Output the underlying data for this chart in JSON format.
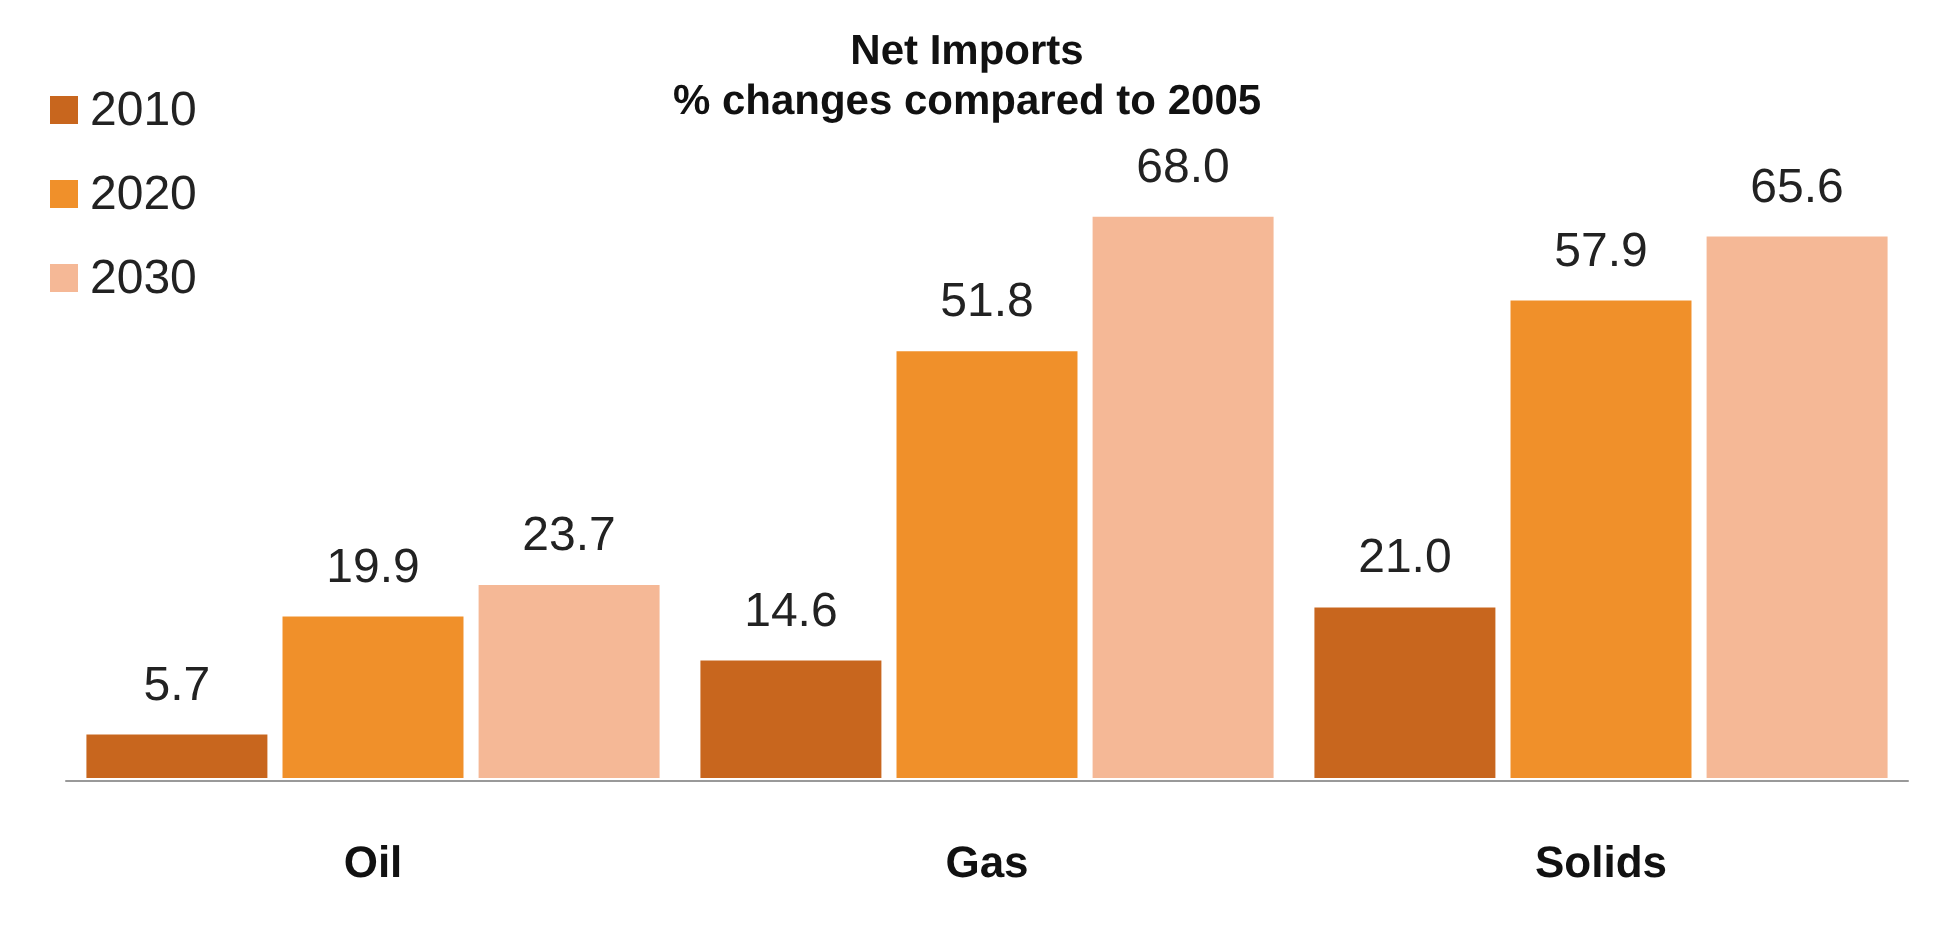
{
  "chart_data": {
    "type": "bar",
    "title": "Net Imports",
    "subtitle": "% changes compared to 2005",
    "categories": [
      "Oil",
      "Gas",
      "Solids"
    ],
    "series": [
      {
        "name": "2010",
        "color": "#c8661e",
        "values": [
          5.7,
          14.6,
          21.0
        ],
        "value_labels": [
          "5.7",
          "14.6",
          "21.0"
        ]
      },
      {
        "name": "2020",
        "color": "#f0902a",
        "values": [
          19.9,
          51.8,
          57.9
        ],
        "value_labels": [
          "19.9",
          "51.8",
          "57.9"
        ]
      },
      {
        "name": "2030",
        "color": "#f5b896",
        "values": [
          23.7,
          68.0,
          65.6
        ],
        "value_labels": [
          "23.7",
          "68.0",
          "65.6"
        ]
      }
    ],
    "legend": "top left"
  }
}
